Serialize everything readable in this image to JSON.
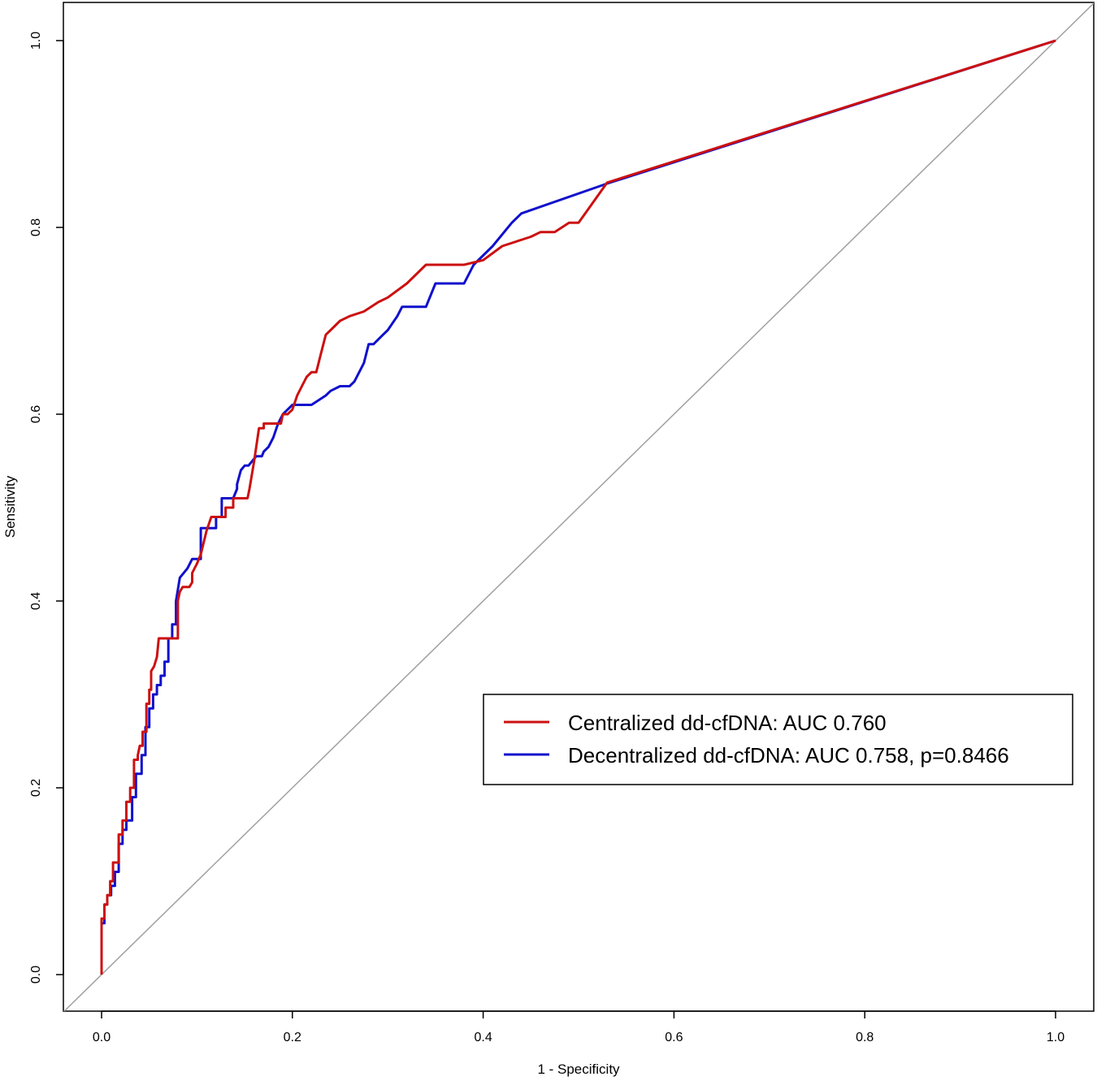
{
  "chart_data": {
    "type": "line",
    "title": "",
    "xlabel": "1 - Specificity",
    "ylabel": "Sensitivity",
    "xlim": [
      -0.04,
      1.04
    ],
    "ylim": [
      -0.04,
      1.04
    ],
    "xticks": [
      "0.0",
      "0.2",
      "0.4",
      "0.6",
      "0.8",
      "1.0"
    ],
    "yticks": [
      "0.0",
      "0.2",
      "0.4",
      "0.6",
      "0.8",
      "1.0"
    ],
    "grid": false,
    "legend": {
      "position": "right-middle"
    },
    "reference_line": {
      "x": [
        0,
        1
      ],
      "y": [
        0,
        1
      ],
      "color": "#a0a0a0"
    },
    "series": [
      {
        "name": "Centralized dd-cfDNA: AUC 0.760",
        "color": "#cc1010",
        "x": [
          0,
          0,
          0.003,
          0.003,
          0.006,
          0.006,
          0.009,
          0.009,
          0.012,
          0.012,
          0.018,
          0.018,
          0.022,
          0.022,
          0.026,
          0.026,
          0.03,
          0.03,
          0.034,
          0.034,
          0.038,
          0.038,
          0.04,
          0.043,
          0.043,
          0.047,
          0.047,
          0.05,
          0.05,
          0.052,
          0.052,
          0.055,
          0.058,
          0.06,
          0.063,
          0.066,
          0.066,
          0.072,
          0.08,
          0.08,
          0.082,
          0.085,
          0.092,
          0.095,
          0.095,
          0.1,
          0.104,
          0.11,
          0.115,
          0.115,
          0.125,
          0.13,
          0.13,
          0.138,
          0.138,
          0.143,
          0.143,
          0.153,
          0.155,
          0.16,
          0.165,
          0.17,
          0.17,
          0.185,
          0.188,
          0.19,
          0.195,
          0.2,
          0.205,
          0.21,
          0.215,
          0.22,
          0.225,
          0.23,
          0.235,
          0.24,
          0.25,
          0.26,
          0.275,
          0.29,
          0.3,
          0.32,
          0.34,
          0.355,
          0.38,
          0.4,
          0.42,
          0.45,
          0.46,
          0.475,
          0.49,
          0.5,
          0.53,
          1.0
        ],
        "y": [
          0,
          0.06,
          0.06,
          0.075,
          0.075,
          0.085,
          0.085,
          0.1,
          0.1,
          0.12,
          0.12,
          0.15,
          0.15,
          0.165,
          0.165,
          0.185,
          0.185,
          0.2,
          0.2,
          0.23,
          0.23,
          0.235,
          0.245,
          0.245,
          0.26,
          0.26,
          0.29,
          0.29,
          0.305,
          0.305,
          0.325,
          0.33,
          0.34,
          0.36,
          0.36,
          0.36,
          0.36,
          0.36,
          0.36,
          0.4,
          0.41,
          0.415,
          0.415,
          0.42,
          0.43,
          0.44,
          0.45,
          0.475,
          0.49,
          0.49,
          0.49,
          0.49,
          0.5,
          0.5,
          0.51,
          0.51,
          0.51,
          0.51,
          0.52,
          0.55,
          0.585,
          0.585,
          0.59,
          0.59,
          0.59,
          0.6,
          0.6,
          0.605,
          0.62,
          0.63,
          0.64,
          0.645,
          0.645,
          0.665,
          0.685,
          0.69,
          0.7,
          0.705,
          0.71,
          0.72,
          0.725,
          0.74,
          0.76,
          0.76,
          0.76,
          0.765,
          0.78,
          0.79,
          0.795,
          0.795,
          0.805,
          0.805,
          0.848,
          1.0
        ]
      },
      {
        "name": "Decentralized dd-cfDNA: AUC 0.758, p=0.8466",
        "color": "#1010cc",
        "x": [
          0,
          0,
          0.003,
          0.003,
          0.006,
          0.006,
          0.01,
          0.01,
          0.014,
          0.014,
          0.018,
          0.018,
          0.022,
          0.022,
          0.026,
          0.026,
          0.032,
          0.032,
          0.036,
          0.036,
          0.042,
          0.042,
          0.046,
          0.046,
          0.05,
          0.05,
          0.054,
          0.054,
          0.058,
          0.058,
          0.062,
          0.062,
          0.066,
          0.066,
          0.07,
          0.07,
          0.074,
          0.074,
          0.078,
          0.078,
          0.082,
          0.09,
          0.095,
          0.1,
          0.104,
          0.104,
          0.115,
          0.12,
          0.12,
          0.126,
          0.126,
          0.132,
          0.138,
          0.142,
          0.142,
          0.146,
          0.15,
          0.154,
          0.162,
          0.168,
          0.17,
          0.175,
          0.18,
          0.185,
          0.19,
          0.195,
          0.2,
          0.205,
          0.22,
          0.235,
          0.24,
          0.25,
          0.26,
          0.265,
          0.275,
          0.28,
          0.285,
          0.295,
          0.3,
          0.31,
          0.315,
          0.34,
          0.35,
          0.38,
          0.39,
          0.41,
          0.43,
          0.44,
          0.53,
          1.0
        ],
        "y": [
          0,
          0.055,
          0.055,
          0.075,
          0.075,
          0.085,
          0.085,
          0.095,
          0.095,
          0.11,
          0.11,
          0.14,
          0.14,
          0.155,
          0.155,
          0.165,
          0.165,
          0.19,
          0.19,
          0.215,
          0.215,
          0.235,
          0.235,
          0.265,
          0.265,
          0.285,
          0.285,
          0.3,
          0.3,
          0.31,
          0.31,
          0.32,
          0.32,
          0.335,
          0.335,
          0.36,
          0.36,
          0.375,
          0.375,
          0.4,
          0.425,
          0.435,
          0.445,
          0.445,
          0.445,
          0.478,
          0.478,
          0.478,
          0.49,
          0.49,
          0.51,
          0.51,
          0.51,
          0.52,
          0.525,
          0.54,
          0.545,
          0.545,
          0.555,
          0.555,
          0.56,
          0.565,
          0.575,
          0.59,
          0.6,
          0.605,
          0.61,
          0.61,
          0.61,
          0.62,
          0.625,
          0.63,
          0.63,
          0.635,
          0.655,
          0.675,
          0.675,
          0.685,
          0.69,
          0.705,
          0.715,
          0.715,
          0.74,
          0.74,
          0.76,
          0.78,
          0.805,
          0.815,
          0.847,
          1.0
        ]
      }
    ]
  }
}
